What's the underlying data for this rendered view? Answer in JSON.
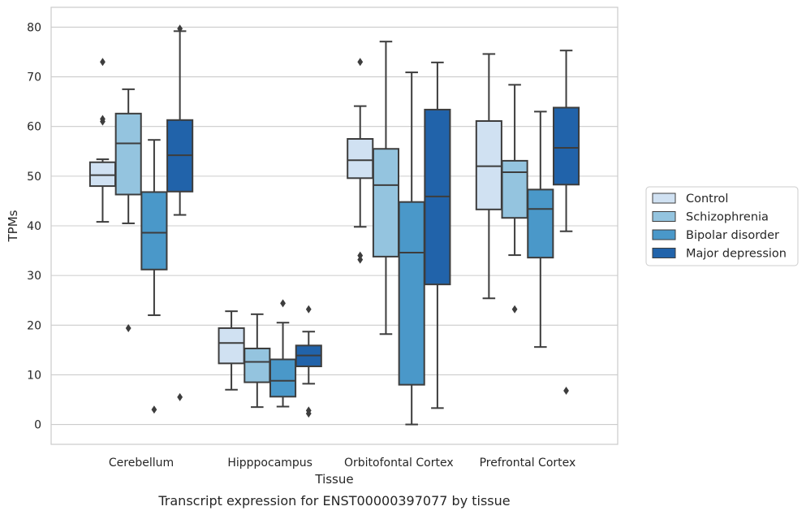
{
  "caption": "Transcript expression for ENST00000397077 by tissue",
  "chart_data": {
    "type": "box",
    "xlabel": "Tissue",
    "ylabel": "TPMs",
    "ylim": [
      -4,
      84
    ],
    "yticks": [
      0,
      10,
      20,
      30,
      40,
      50,
      60,
      70,
      80
    ],
    "grid": "horizontal",
    "legend_position": "right, outside plot",
    "categories": [
      "Cerebellum",
      "Hipppocampus",
      "Orbitofontal Cortex",
      "Prefrontal Cortex"
    ],
    "series": [
      {
        "name": "Control",
        "color": "#d0e1f2",
        "boxes": [
          {
            "whisker_low": 40.8,
            "q1": 48.0,
            "median": 50.2,
            "q3": 52.8,
            "whisker_high": 53.4,
            "outliers": [
              73.0,
              61.5,
              61.0
            ]
          },
          {
            "whisker_low": 7.0,
            "q1": 12.3,
            "median": 16.4,
            "q3": 19.4,
            "whisker_high": 22.8,
            "outliers": []
          },
          {
            "whisker_low": 39.8,
            "q1": 49.6,
            "median": 53.2,
            "q3": 57.5,
            "whisker_high": 64.1,
            "outliers": [
              73.0,
              34.0,
              33.2
            ]
          },
          {
            "whisker_low": 25.4,
            "q1": 43.3,
            "median": 52.0,
            "q3": 61.1,
            "whisker_high": 74.6,
            "outliers": []
          }
        ]
      },
      {
        "name": "Schizophrenia",
        "color": "#94c4df",
        "boxes": [
          {
            "whisker_low": 40.5,
            "q1": 46.3,
            "median": 56.6,
            "q3": 62.6,
            "whisker_high": 67.5,
            "outliers": [
              19.4
            ]
          },
          {
            "whisker_low": 3.5,
            "q1": 8.5,
            "median": 12.6,
            "q3": 15.3,
            "whisker_high": 22.2,
            "outliers": []
          },
          {
            "whisker_low": 18.2,
            "q1": 33.8,
            "median": 48.2,
            "q3": 55.5,
            "whisker_high": 77.1,
            "outliers": []
          },
          {
            "whisker_low": 34.1,
            "q1": 41.6,
            "median": 50.8,
            "q3": 53.1,
            "whisker_high": 68.4,
            "outliers": [
              23.2
            ]
          }
        ]
      },
      {
        "name": "Bipolar disorder",
        "color": "#4a98c9",
        "boxes": [
          {
            "whisker_low": 22.0,
            "q1": 31.2,
            "median": 38.6,
            "q3": 46.8,
            "whisker_high": 57.3,
            "outliers": [
              3.0
            ]
          },
          {
            "whisker_low": 3.6,
            "q1": 5.6,
            "median": 8.8,
            "q3": 13.1,
            "whisker_high": 20.5,
            "outliers": [
              24.4
            ]
          },
          {
            "whisker_low": 0.0,
            "q1": 8.0,
            "median": 34.6,
            "q3": 44.8,
            "whisker_high": 70.9,
            "outliers": []
          },
          {
            "whisker_low": 15.6,
            "q1": 33.6,
            "median": 43.4,
            "q3": 47.3,
            "whisker_high": 63.0,
            "outliers": []
          }
        ]
      },
      {
        "name": "Major depression",
        "color": "#2163aa",
        "boxes": [
          {
            "whisker_low": 42.2,
            "q1": 46.9,
            "median": 54.2,
            "q3": 61.3,
            "whisker_high": 79.2,
            "outliers": [
              79.7,
              5.5
            ]
          },
          {
            "whisker_low": 8.2,
            "q1": 11.7,
            "median": 13.9,
            "q3": 15.9,
            "whisker_high": 18.7,
            "outliers": [
              23.2,
              2.8,
              2.2
            ]
          },
          {
            "whisker_low": 3.3,
            "q1": 28.2,
            "median": 45.9,
            "q3": 63.4,
            "whisker_high": 72.9,
            "outliers": []
          },
          {
            "whisker_low": 38.9,
            "q1": 48.3,
            "median": 55.7,
            "q3": 63.8,
            "whisker_high": 75.3,
            "outliers": [
              6.8
            ]
          }
        ]
      }
    ]
  }
}
